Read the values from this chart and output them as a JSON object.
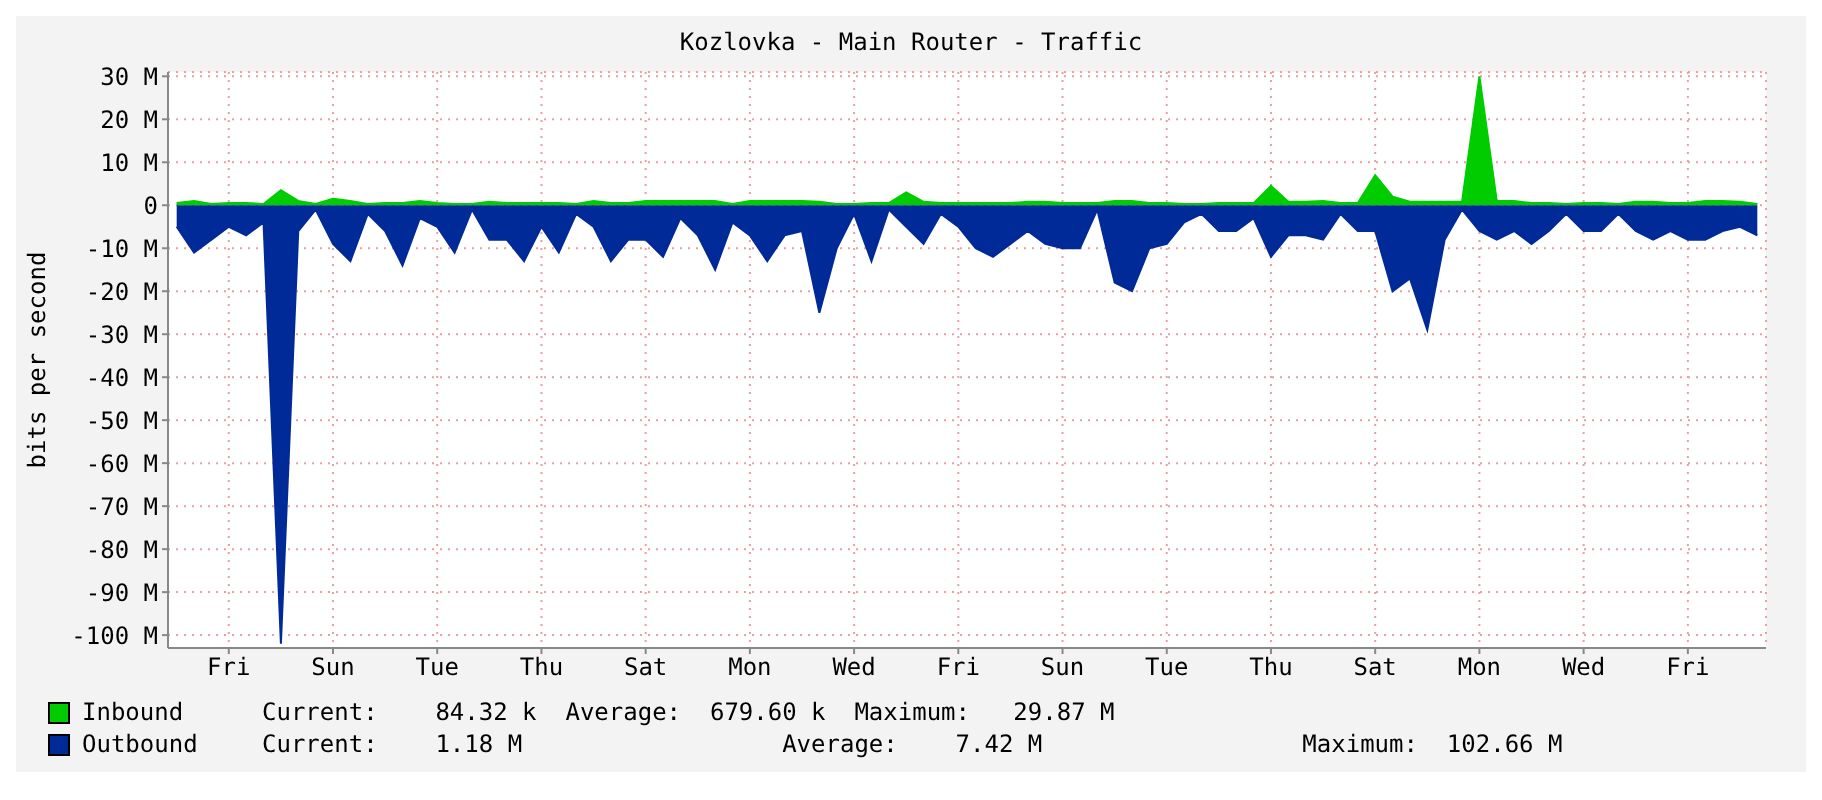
{
  "chart_data": {
    "type": "area",
    "title": "Kozlovka - Main Router - Traffic",
    "ylabel": "bits per second",
    "categories": [
      null,
      null,
      null,
      "Fri",
      null,
      null,
      null,
      null,
      null,
      "Sun",
      null,
      null,
      null,
      null,
      null,
      "Tue",
      null,
      null,
      null,
      null,
      null,
      "Thu",
      null,
      null,
      null,
      null,
      null,
      "Sat",
      null,
      null,
      null,
      null,
      null,
      "Mon",
      null,
      null,
      null,
      null,
      null,
      "Wed",
      null,
      null,
      null,
      null,
      null,
      "Fri",
      null,
      null,
      null,
      null,
      null,
      "Sun",
      null,
      null,
      null,
      null,
      null,
      "Tue",
      null,
      null,
      null,
      null,
      null,
      "Thu",
      null,
      null,
      null,
      null,
      null,
      "Sat",
      null,
      null,
      null,
      null,
      null,
      "Mon",
      null,
      null,
      null,
      null,
      null,
      "Wed",
      null,
      null,
      null,
      null,
      null,
      "Fri",
      null,
      null,
      null,
      null
    ],
    "ylim": [
      -103,
      31
    ],
    "yticks": [
      {
        "value": 30,
        "label": "30 M"
      },
      {
        "value": 20,
        "label": "20 M"
      },
      {
        "value": 10,
        "label": "10 M"
      },
      0,
      {
        "value": -10,
        "label": "-10 M"
      },
      {
        "value": -20,
        "label": "-20 M"
      },
      {
        "value": -30,
        "label": "-30 M"
      },
      {
        "value": -40,
        "label": "-40 M"
      },
      {
        "value": -50,
        "label": "-50 M"
      },
      {
        "value": -60,
        "label": "-60 M"
      },
      {
        "value": -70,
        "label": "-70 M"
      },
      {
        "value": -80,
        "label": "-80 M"
      },
      {
        "value": -90,
        "label": "-90 M"
      },
      {
        "value": -100,
        "label": "-100 M"
      }
    ],
    "grid": true,
    "legend": "bottom",
    "annotations": [
      "Current:    84.32 k  Average:  679.60 k  Maximum:   29.87 M",
      "Current:    1.18 M                  Average:    7.42 M                  Maximum:  102.66 M"
    ],
    "series": [
      {
        "name": "Inbound",
        "color": "#00cc00",
        "values": [
          0.5,
          1,
          0.3,
          0.5,
          0.5,
          0.3,
          3.5,
          1,
          0.3,
          1.5,
          1,
          0.3,
          0.5,
          0.5,
          1,
          0.5,
          0.3,
          0.3,
          0.8,
          0.5,
          0.5,
          0.5,
          0.5,
          0.3,
          1,
          0.5,
          0.5,
          1,
          1,
          1,
          1,
          1,
          0.3,
          1,
          1,
          1,
          1,
          0.8,
          0.3,
          0.3,
          0.5,
          0.5,
          3,
          0.8,
          0.5,
          0.5,
          0.5,
          0.5,
          0.5,
          0.8,
          0.8,
          0.5,
          0.5,
          0.5,
          1,
          1,
          0.5,
          0.5,
          0.3,
          0.3,
          0.5,
          0.5,
          0.5,
          4.5,
          0.8,
          0.8,
          1,
          0.5,
          0.5,
          7,
          2,
          0.8,
          0.8,
          0.8,
          0.8,
          30,
          1,
          1,
          0.5,
          0.5,
          0.3,
          0.5,
          0.5,
          0.3,
          0.8,
          0.8,
          0.5,
          0.5,
          1,
          1,
          0.8,
          0.3
        ]
      },
      {
        "name": "Outbound",
        "color": "#002a97",
        "values": [
          -5,
          -11,
          -8,
          -5,
          -7,
          -4,
          -102,
          -6,
          -1,
          -9,
          -13,
          -2,
          -6,
          -14,
          -3,
          -5,
          -11,
          -1,
          -8,
          -8,
          -13,
          -5,
          -11,
          -2,
          -5,
          -13,
          -8,
          -8,
          -12,
          -3,
          -7,
          -15,
          -4,
          -7,
          -13,
          -7,
          -6,
          -25,
          -10,
          -2,
          -13,
          -1,
          -5,
          -9,
          -2,
          -5,
          -10,
          -12,
          -9,
          -6,
          -9,
          -10,
          -10,
          -1,
          -18,
          -20,
          -10,
          -9,
          -4,
          -2,
          -6,
          -6,
          -3,
          -12,
          -7,
          -7,
          -8,
          -2,
          -6,
          -6,
          -20,
          -17,
          -29,
          -8,
          -1,
          -6,
          -8,
          -6,
          -9,
          -6,
          -2,
          -6,
          -6,
          -2,
          -6,
          -8,
          -6,
          -8,
          -8,
          -6,
          -5,
          -7
        ]
      }
    ]
  }
}
